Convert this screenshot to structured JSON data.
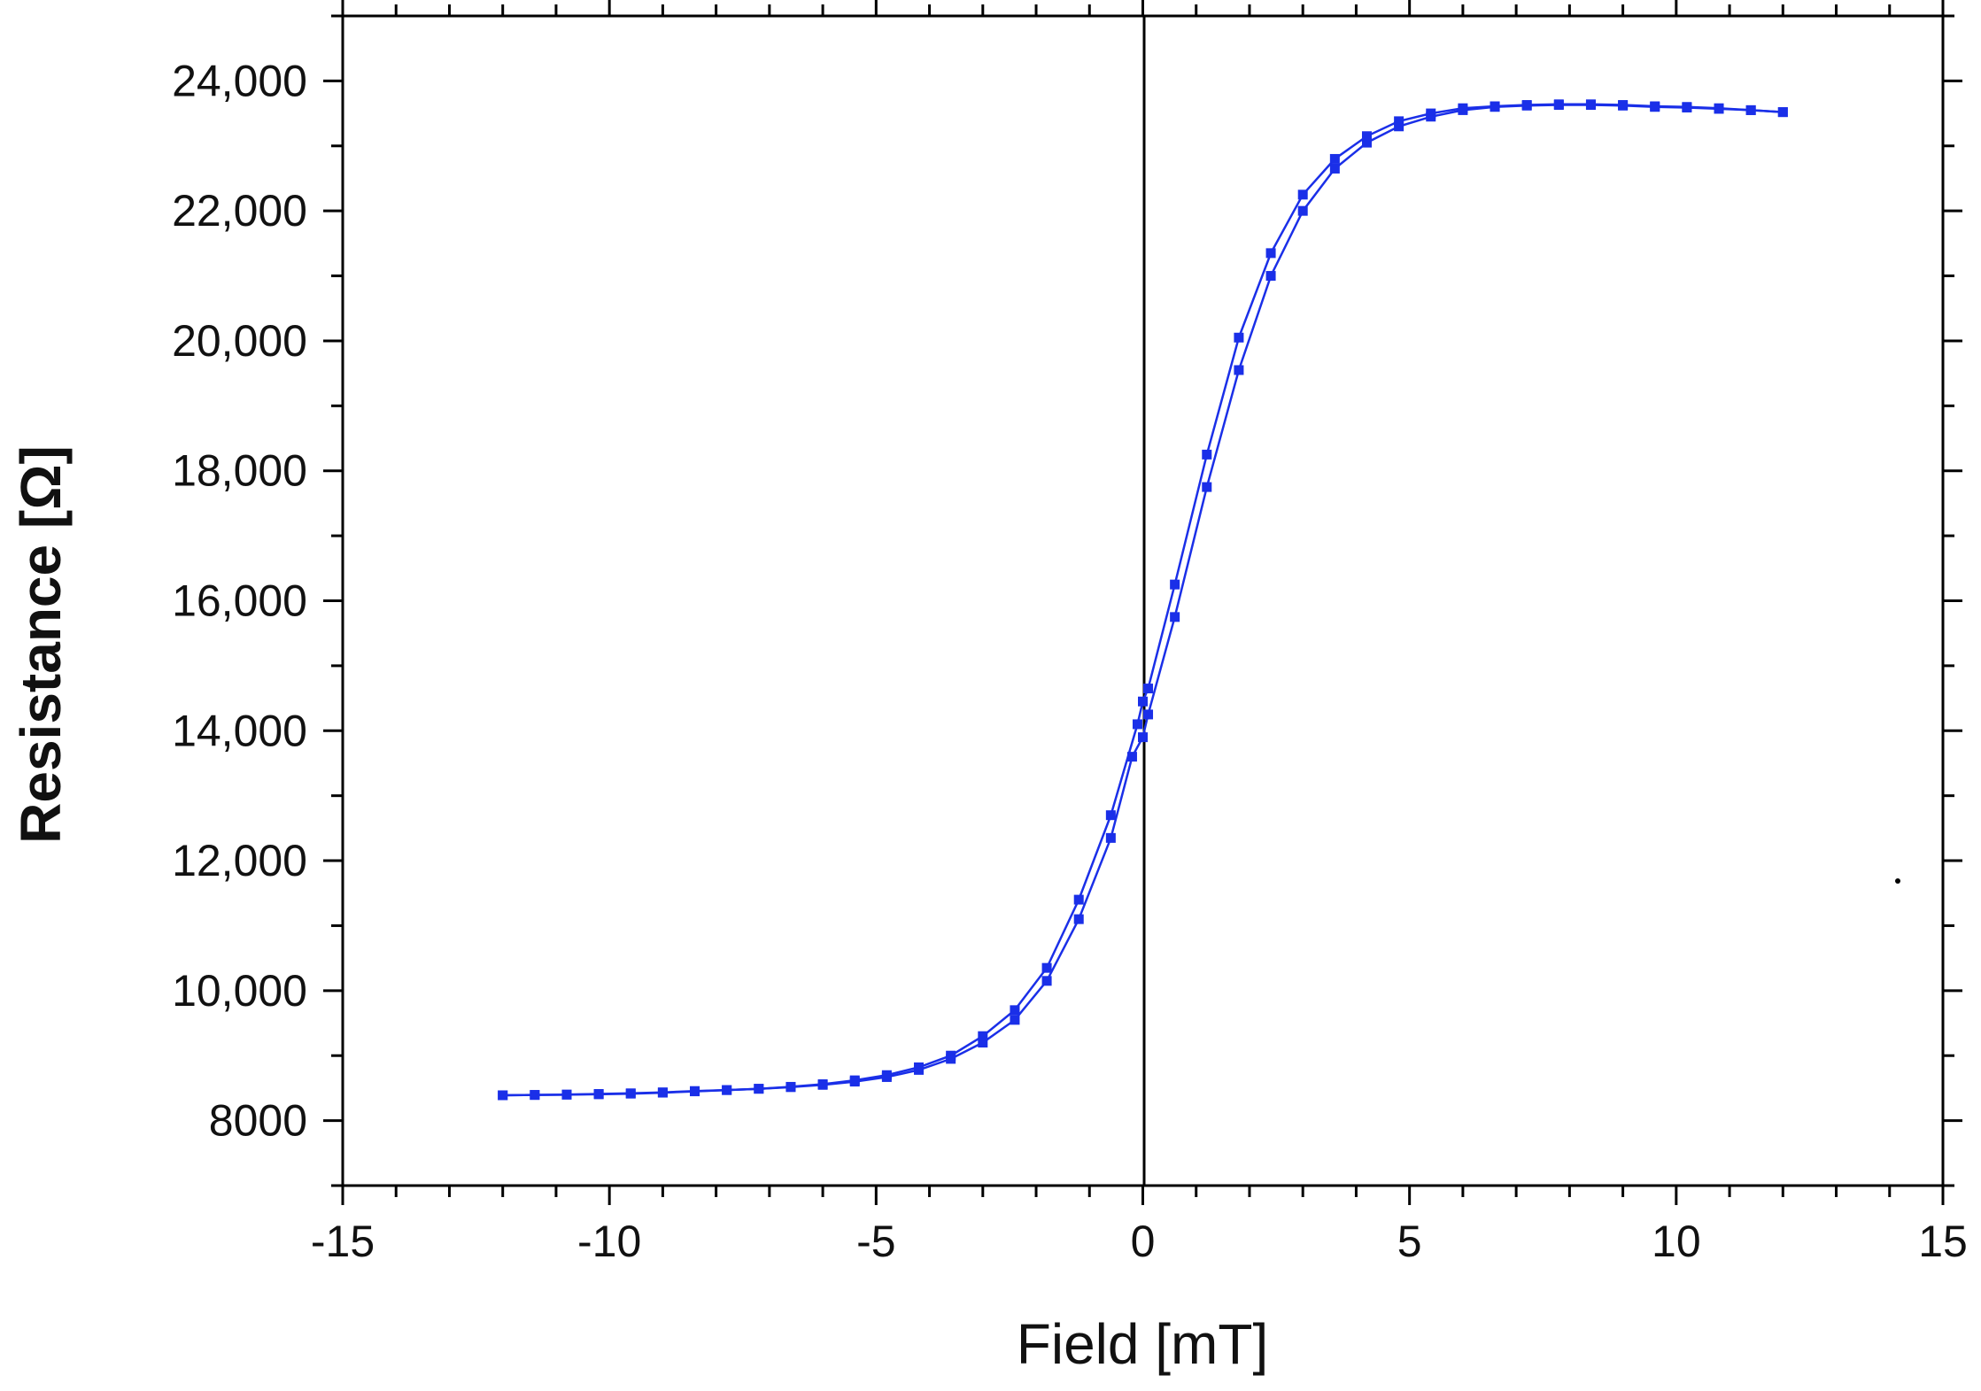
{
  "chart_data": {
    "type": "line",
    "title": "",
    "xlabel": "Field [mT]",
    "ylabel": "Resistance [Ω]",
    "xlim": [
      -15,
      15
    ],
    "ylim": [
      7000,
      25000
    ],
    "x_ticks": [
      -15,
      -10,
      -5,
      0,
      5,
      10,
      15
    ],
    "x_tick_labels": [
      "-15",
      "-10",
      "-5",
      "0",
      "5",
      "10",
      "15"
    ],
    "y_ticks": [
      8000,
      10000,
      12000,
      14000,
      16000,
      18000,
      20000,
      22000,
      24000
    ],
    "y_tick_labels": [
      "8000",
      "10,000",
      "12,000",
      "14,000",
      "16,000",
      "18,000",
      "20,000",
      "22,000",
      "24,000"
    ],
    "grid": false,
    "legend": "none",
    "marker": "square",
    "color": "#1a2fe8",
    "zero_line": true,
    "series": [
      {
        "x": [
          -12,
          -11.4,
          -10.8,
          -10.2,
          -9.6,
          -9,
          -8.4,
          -7.8,
          -7.2,
          -6.6,
          -6,
          -5.4,
          -4.8,
          -4.2,
          -3.6,
          -3,
          -2.4,
          -1.8,
          -1.2,
          -0.6,
          -0.2,
          0,
          0.1,
          0.6,
          1.2,
          1.8,
          2.4,
          3,
          3.6,
          4.2,
          4.8,
          5.4,
          6,
          6.6,
          7.2,
          7.8,
          8.4,
          9,
          9.6,
          10.2,
          10.8,
          11.4,
          12
        ],
        "y": [
          8390,
          8395,
          8400,
          8410,
          8420,
          8435,
          8455,
          8470,
          8490,
          8515,
          8550,
          8600,
          8670,
          8780,
          8950,
          9200,
          9550,
          10150,
          11100,
          12350,
          13600,
          13900,
          14250,
          15750,
          17750,
          19550,
          21000,
          22000,
          22650,
          23050,
          23300,
          23450,
          23550,
          23600,
          23620,
          23630,
          23630,
          23620,
          23600,
          23590,
          23570,
          23550,
          23520
        ]
      },
      {
        "x": [
          12,
          11.4,
          10.8,
          10.2,
          9.6,
          9,
          8.4,
          7.8,
          7.2,
          6.6,
          6,
          5.4,
          4.8,
          4.2,
          3.6,
          3,
          2.4,
          1.8,
          1.2,
          0.6,
          0.1,
          0,
          -0.1,
          -0.6,
          -1.2,
          -1.8,
          -2.4,
          -3,
          -3.6,
          -4.2,
          -4.8,
          -5.4,
          -6,
          -6.6,
          -7.2,
          -7.8,
          -8.4,
          -9,
          -9.6,
          -10.2,
          -10.8,
          -11.4,
          -12
        ],
        "y": [
          23520,
          23550,
          23580,
          23600,
          23610,
          23630,
          23640,
          23640,
          23630,
          23610,
          23580,
          23500,
          23380,
          23150,
          22800,
          22250,
          21350,
          20050,
          18250,
          16250,
          14650,
          14450,
          14100,
          12700,
          11400,
          10350,
          9700,
          9300,
          9000,
          8820,
          8700,
          8620,
          8560,
          8520,
          8490,
          8470,
          8450,
          8430,
          8415,
          8405,
          8400,
          8395,
          8390
        ]
      }
    ]
  }
}
